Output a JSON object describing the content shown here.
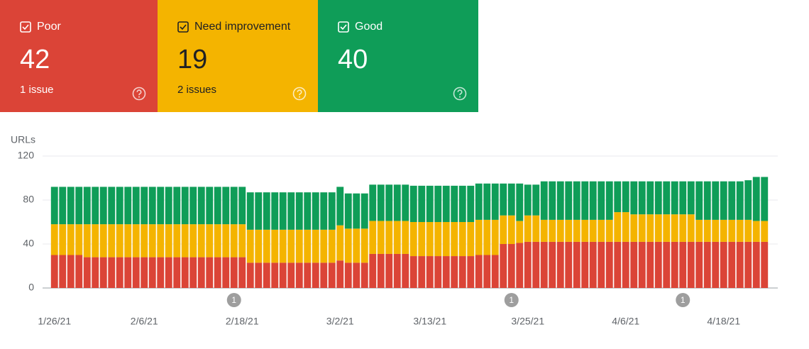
{
  "cards": [
    {
      "title": "Poor",
      "value": 42,
      "subtitle": "1 issue",
      "color": "#db4437",
      "text_color": "#ffffff"
    },
    {
      "title": "Need improvement",
      "value": 19,
      "subtitle": "2 issues",
      "color": "#f4b400",
      "text_color": "#202124"
    },
    {
      "title": "Good",
      "value": 40,
      "color": "#0f9d58",
      "text_color": "#ffffff"
    }
  ],
  "chart_data": {
    "type": "stacked_bar",
    "ylabel": "URLs",
    "categories": [
      "1/26/21",
      null,
      null,
      null,
      null,
      null,
      null,
      null,
      null,
      null,
      null,
      "2/6/21",
      null,
      null,
      null,
      null,
      null,
      null,
      null,
      null,
      null,
      null,
      null,
      "2/18/21",
      null,
      null,
      null,
      null,
      null,
      null,
      null,
      null,
      null,
      null,
      null,
      "3/2/21",
      null,
      null,
      null,
      null,
      null,
      null,
      null,
      null,
      null,
      null,
      "3/13/21",
      null,
      null,
      null,
      null,
      null,
      null,
      null,
      null,
      null,
      null,
      null,
      "3/25/21",
      null,
      null,
      null,
      null,
      null,
      null,
      null,
      null,
      null,
      null,
      null,
      "4/6/21",
      null,
      null,
      null,
      null,
      null,
      null,
      null,
      null,
      null,
      null,
      null,
      "4/18/21",
      null,
      null,
      null,
      null,
      null
    ],
    "series": [
      {
        "color": "#db4437",
        "values": [
          30,
          30,
          30,
          30,
          28,
          28,
          28,
          28,
          28,
          28,
          28,
          28,
          28,
          28,
          28,
          28,
          28,
          28,
          28,
          28,
          28,
          28,
          28,
          28,
          23,
          23,
          23,
          23,
          23,
          23,
          23,
          23,
          23,
          23,
          23,
          25,
          23,
          23,
          23,
          31,
          31,
          31,
          31,
          31,
          29,
          29,
          29,
          29,
          29,
          29,
          29,
          29,
          30,
          30,
          30,
          40,
          40,
          41,
          42,
          42,
          42,
          42,
          42,
          42,
          42,
          42,
          42,
          42,
          42,
          42,
          42,
          42,
          42,
          42,
          42,
          42,
          42,
          42,
          42,
          42,
          42,
          42,
          42,
          42,
          42,
          42,
          42,
          42
        ]
      },
      {
        "color": "#f4b400",
        "values": [
          28,
          28,
          28,
          28,
          30,
          30,
          30,
          30,
          30,
          30,
          30,
          30,
          30,
          30,
          30,
          30,
          30,
          30,
          30,
          30,
          30,
          30,
          30,
          30,
          30,
          30,
          30,
          30,
          30,
          30,
          30,
          30,
          30,
          30,
          30,
          32,
          31,
          31,
          31,
          30,
          30,
          30,
          30,
          30,
          31,
          31,
          31,
          31,
          31,
          31,
          31,
          31,
          32,
          32,
          32,
          26,
          26,
          20,
          24,
          24,
          20,
          20,
          20,
          20,
          20,
          20,
          20,
          20,
          20,
          27,
          27,
          25,
          25,
          25,
          25,
          25,
          25,
          25,
          25,
          20,
          20,
          20,
          20,
          20,
          20,
          20,
          19,
          19
        ]
      },
      {
        "color": "#0f9d58",
        "values": [
          34,
          34,
          34,
          34,
          34,
          34,
          34,
          34,
          34,
          34,
          34,
          34,
          34,
          34,
          34,
          34,
          34,
          34,
          34,
          34,
          34,
          34,
          34,
          34,
          34,
          34,
          34,
          34,
          34,
          34,
          34,
          34,
          34,
          34,
          34,
          35,
          32,
          32,
          32,
          33,
          33,
          33,
          33,
          33,
          33,
          33,
          33,
          33,
          33,
          33,
          33,
          33,
          33,
          33,
          33,
          29,
          29,
          34,
          28,
          28,
          35,
          35,
          35,
          35,
          35,
          35,
          35,
          35,
          35,
          28,
          28,
          30,
          30,
          30,
          30,
          30,
          30,
          30,
          30,
          35,
          35,
          35,
          35,
          35,
          35,
          36,
          40,
          40
        ]
      }
    ],
    "ylim": [
      0,
      120
    ],
    "yticks": [
      0,
      40,
      80,
      120
    ],
    "grid": true,
    "annotations": [
      {
        "x": 22,
        "label": "1"
      },
      {
        "x": 56,
        "label": "1"
      },
      {
        "x": 77,
        "label": "1"
      }
    ]
  }
}
